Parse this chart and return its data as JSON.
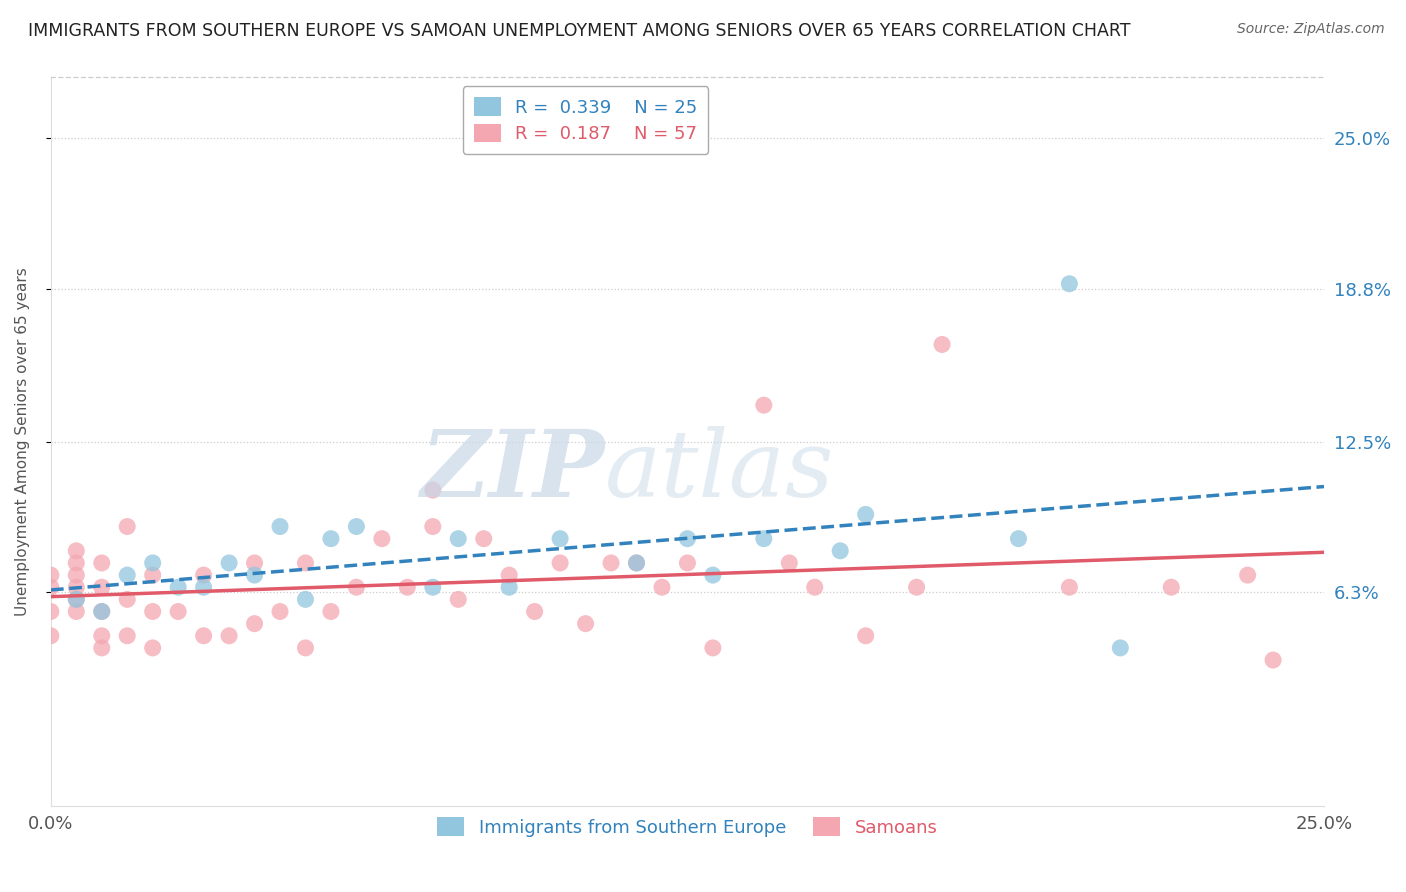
{
  "title": "IMMIGRANTS FROM SOUTHERN EUROPE VS SAMOAN UNEMPLOYMENT AMONG SENIORS OVER 65 YEARS CORRELATION CHART",
  "source": "Source: ZipAtlas.com",
  "xlabel_ticks": [
    "0.0%",
    "25.0%"
  ],
  "ylabel_label": "Unemployment Among Seniors over 65 years",
  "right_yticks": [
    "25.0%",
    "18.8%",
    "12.5%",
    "6.3%"
  ],
  "right_ytick_values": [
    0.25,
    0.188,
    0.125,
    0.063
  ],
  "xmin": 0.0,
  "xmax": 0.25,
  "ymin": -0.025,
  "ymax": 0.275,
  "legend1_r": "0.339",
  "legend1_n": "25",
  "legend2_r": "0.187",
  "legend2_n": "57",
  "legend1_label": "Immigrants from Southern Europe",
  "legend2_label": "Samoans",
  "color_blue": "#92c5de",
  "color_pink": "#f4a7b0",
  "color_blue_line": "#3182bd",
  "color_pink_line": "#e05a6a",
  "blue_scatter_x": [
    0.005,
    0.01,
    0.015,
    0.02,
    0.025,
    0.03,
    0.035,
    0.04,
    0.045,
    0.05,
    0.055,
    0.06,
    0.075,
    0.08,
    0.09,
    0.1,
    0.115,
    0.125,
    0.13,
    0.14,
    0.155,
    0.16,
    0.19,
    0.2,
    0.21
  ],
  "blue_scatter_y": [
    0.06,
    0.055,
    0.07,
    0.075,
    0.065,
    0.065,
    0.075,
    0.07,
    0.09,
    0.06,
    0.085,
    0.09,
    0.065,
    0.085,
    0.065,
    0.085,
    0.075,
    0.085,
    0.07,
    0.085,
    0.08,
    0.095,
    0.085,
    0.19,
    0.04
  ],
  "pink_scatter_x": [
    0.0,
    0.0,
    0.0,
    0.0,
    0.005,
    0.005,
    0.005,
    0.005,
    0.005,
    0.005,
    0.01,
    0.01,
    0.01,
    0.01,
    0.01,
    0.015,
    0.015,
    0.015,
    0.02,
    0.02,
    0.02,
    0.025,
    0.03,
    0.03,
    0.035,
    0.04,
    0.04,
    0.045,
    0.05,
    0.05,
    0.055,
    0.06,
    0.065,
    0.07,
    0.075,
    0.075,
    0.08,
    0.085,
    0.09,
    0.095,
    0.1,
    0.105,
    0.11,
    0.115,
    0.12,
    0.125,
    0.13,
    0.14,
    0.145,
    0.15,
    0.16,
    0.17,
    0.175,
    0.2,
    0.22,
    0.235,
    0.24
  ],
  "pink_scatter_y": [
    0.055,
    0.065,
    0.07,
    0.045,
    0.055,
    0.06,
    0.065,
    0.07,
    0.075,
    0.08,
    0.04,
    0.045,
    0.055,
    0.065,
    0.075,
    0.045,
    0.06,
    0.09,
    0.04,
    0.055,
    0.07,
    0.055,
    0.045,
    0.07,
    0.045,
    0.05,
    0.075,
    0.055,
    0.04,
    0.075,
    0.055,
    0.065,
    0.085,
    0.065,
    0.09,
    0.105,
    0.06,
    0.085,
    0.07,
    0.055,
    0.075,
    0.05,
    0.075,
    0.075,
    0.065,
    0.075,
    0.04,
    0.14,
    0.075,
    0.065,
    0.045,
    0.065,
    0.165,
    0.065,
    0.065,
    0.07,
    0.035
  ]
}
